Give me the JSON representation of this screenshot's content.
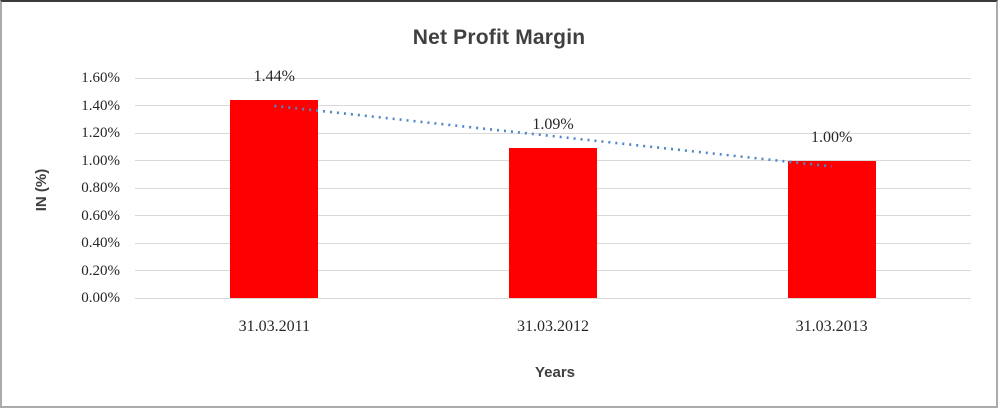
{
  "chart_data": {
    "type": "bar",
    "title": "Net Profit Margin",
    "xlabel": "Years",
    "ylabel": "IN (%)",
    "categories": [
      "31.03.2011",
      "31.03.2012",
      "31.03.2013"
    ],
    "series": [
      {
        "name": "Net Profit Margin",
        "color": "#FF0000",
        "values": [
          1.44,
          1.09,
          1.0
        ]
      }
    ],
    "data_labels": [
      "1.44%",
      "1.09%",
      "1.00%"
    ],
    "y_ticks": [
      {
        "value": 0.0,
        "label": "0.00%"
      },
      {
        "value": 0.2,
        "label": "0.20%"
      },
      {
        "value": 0.4,
        "label": "0.40%"
      },
      {
        "value": 0.6,
        "label": "0.60%"
      },
      {
        "value": 0.8,
        "label": "0.80%"
      },
      {
        "value": 1.0,
        "label": "1.00%"
      },
      {
        "value": 1.2,
        "label": "1.20%"
      },
      {
        "value": 1.4,
        "label": "1.40%"
      },
      {
        "value": 1.6,
        "label": "1.60%"
      }
    ],
    "ylim": [
      0,
      1.6
    ],
    "grid": true,
    "legend": false,
    "trendline": {
      "type": "linear",
      "style": "dotted",
      "color": "#4E87C8",
      "fit_values": [
        1.397,
        1.177,
        0.957
      ]
    },
    "colors": {
      "bar": "#FF0000",
      "gridline": "#D9D9D9",
      "title_text": "#404040",
      "tick_text": "#262626",
      "axis_title_text": "#3F3F3F"
    }
  }
}
